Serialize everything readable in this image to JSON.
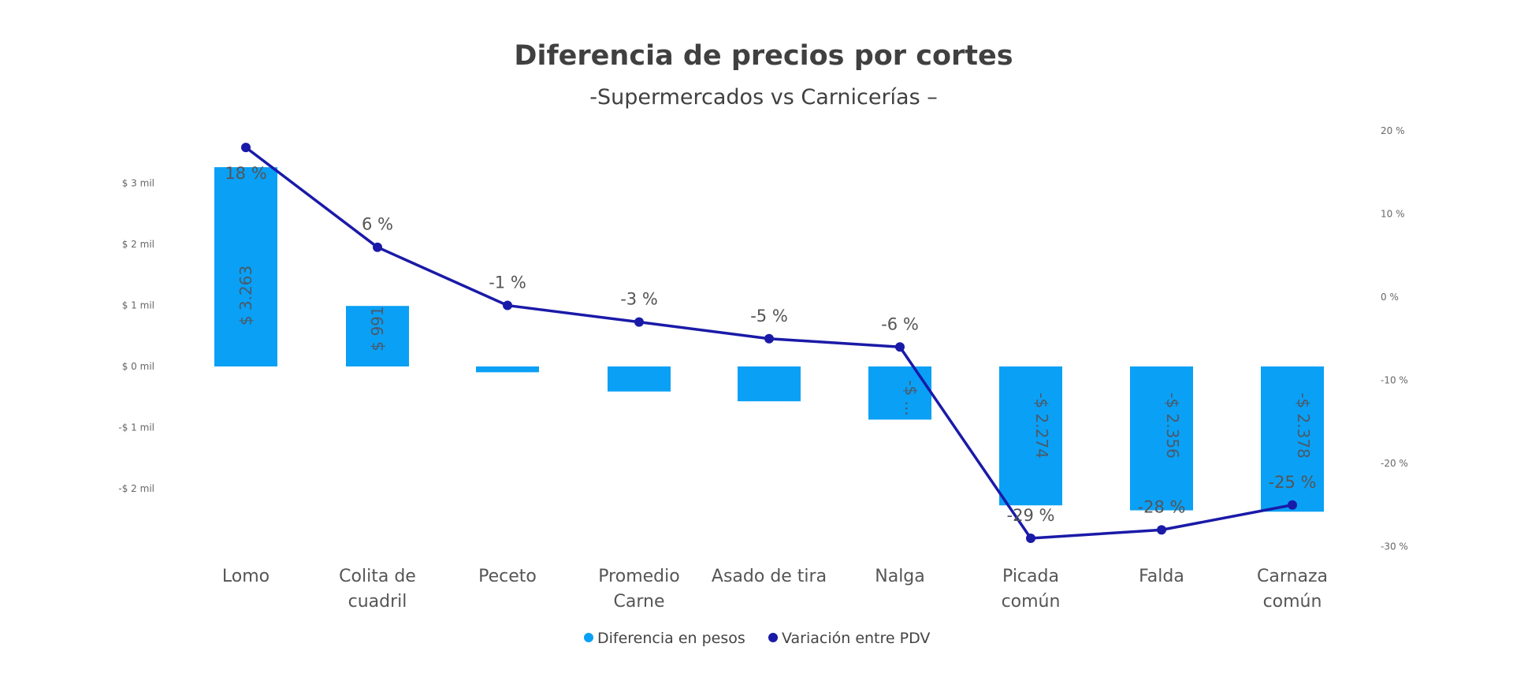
{
  "chart_data": {
    "type": "bar+line",
    "title": "Diferencia de precios por cortes",
    "subtitle": "-Supermercados vs Carnicerías –",
    "categories": [
      [
        "Lomo"
      ],
      [
        "Colita de",
        "cuadril"
      ],
      [
        "Peceto"
      ],
      [
        "Promedio",
        "Carne"
      ],
      [
        "Asado de tira"
      ],
      [
        "Nalga"
      ],
      [
        "Picada",
        "común"
      ],
      [
        "Falda"
      ],
      [
        "Carnaza",
        "común"
      ]
    ],
    "series": [
      {
        "name": "Diferencia en pesos",
        "type": "bar",
        "axis": "left",
        "color": "#0AA0F5",
        "values": [
          3263,
          991,
          -95,
          -410,
          -570,
          -870,
          -2274,
          -2356,
          -2378
        ],
        "labels": [
          "$ 3.263",
          "$ 991",
          "",
          "",
          "",
          "-$ ...",
          "-$ 2.274",
          "-$ 2.356",
          "-$ 2.378"
        ]
      },
      {
        "name": "Variación entre PDV",
        "type": "line",
        "axis": "right",
        "color": "#1A1AA8",
        "values": [
          18,
          6,
          -1,
          -3,
          -5,
          -6,
          -29,
          -28,
          -25
        ],
        "labels": [
          "18 %",
          "6 %",
          "-1 %",
          "-3 %",
          "-5 %",
          "-6 %",
          "-29 %",
          "-28 %",
          "-25 %"
        ]
      }
    ],
    "left_axis": {
      "ticks": [
        3000,
        2000,
        1000,
        0,
        -1000,
        -2000
      ],
      "tick_labels": [
        "$ 3 mil",
        "$ 2 mil",
        "$ 1 mil",
        "$ 0 mil",
        "-$ 1 mil",
        "-$ 2 mil"
      ]
    },
    "right_axis": {
      "ticks": [
        20,
        10,
        0,
        -10,
        -20,
        -30
      ],
      "tick_labels": [
        "20 %",
        "10 %",
        "0 %",
        "-10 %",
        "-20 %",
        "-30 %"
      ],
      "range": [
        -30,
        20
      ]
    },
    "grid": false,
    "legend_position": "bottom"
  }
}
